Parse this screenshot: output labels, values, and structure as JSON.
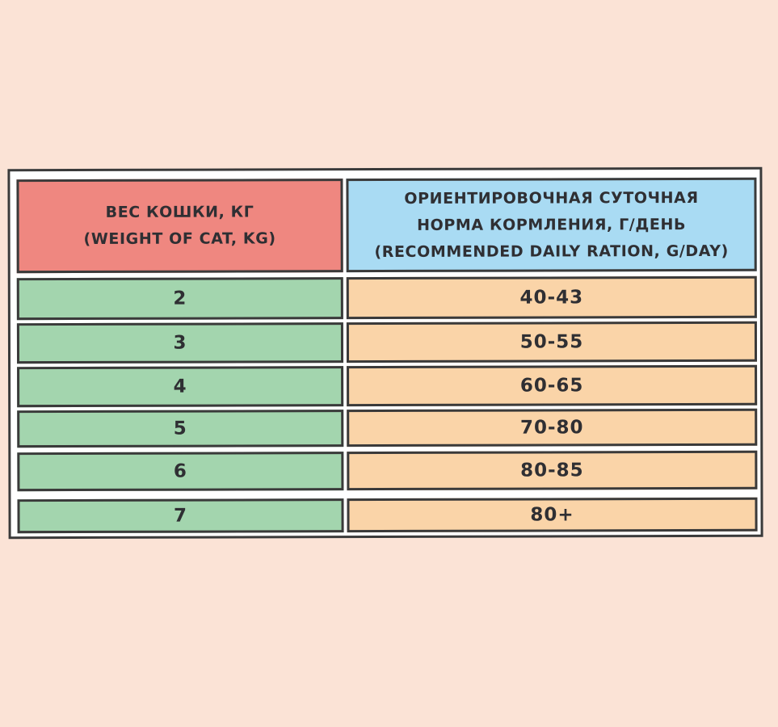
{
  "table": {
    "header": {
      "weight_lines": [
        "ВЕС КОШКИ, КГ",
        "(WEIGHT OF CAT, KG)"
      ],
      "ration_lines": [
        "ОРИЕНТИРОВОЧНАЯ СУТОЧНАЯ",
        "НОРМА КОРМЛЕНИЯ, Г/ДЕНЬ",
        "(RECOMMENDED DAILY RATION, G/DAY)"
      ]
    },
    "rows": [
      {
        "weight": "2",
        "ration": "40-43"
      },
      {
        "weight": "3",
        "ration": "50-55"
      },
      {
        "weight": "4",
        "ration": "60-65"
      },
      {
        "weight": "5",
        "ration": "70-80"
      },
      {
        "weight": "6",
        "ration": "80-85"
      },
      {
        "weight": "7",
        "ration": "80+"
      }
    ]
  },
  "colors": {
    "background": "#fbe3d6",
    "weight_header": "#ef8780",
    "ration_header": "#a9dbf3",
    "weight_cells": "#a3d5ae",
    "ration_cells": "#fad4a8",
    "border": "#3a3a3a"
  }
}
